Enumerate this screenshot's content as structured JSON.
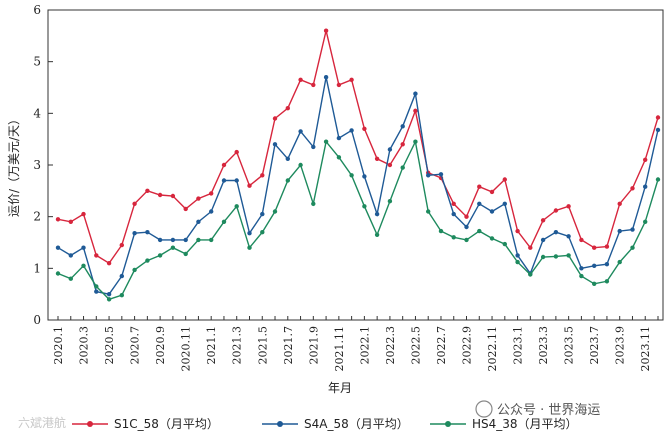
{
  "chart_data": {
    "type": "line",
    "title": "",
    "xlabel": "年月",
    "ylabel": "运价/（万美元/天）",
    "ylim": [
      0,
      6
    ],
    "yticks": [
      0,
      1,
      2,
      3,
      4,
      5,
      6
    ],
    "x": [
      "2020.1",
      "2020.2",
      "2020.3",
      "2020.4",
      "2020.5",
      "2020.6",
      "2020.7",
      "2020.8",
      "2020.9",
      "2020.10",
      "2020.11",
      "2020.12",
      "2021.1",
      "2021.2",
      "2021.3",
      "2021.4",
      "2021.5",
      "2021.6",
      "2021.7",
      "2021.8",
      "2021.9",
      "2021.10",
      "2021.11",
      "2021.12",
      "2022.1",
      "2022.2",
      "2022.3",
      "2022.4",
      "2022.5",
      "2022.6",
      "2022.7",
      "2022.8",
      "2022.9",
      "2022.10",
      "2022.11",
      "2022.12",
      "2023.1",
      "2023.2",
      "2023.3",
      "2023.4",
      "2023.5",
      "2023.6",
      "2023.7",
      "2023.8",
      "2023.9",
      "2023.10",
      "2023.11",
      "2023.12"
    ],
    "xtick_labels": [
      "2020.1",
      "2020.3",
      "2020.5",
      "2020.7",
      "2020.9",
      "2020.11",
      "2021.1",
      "2021.3",
      "2021.5",
      "2021.7",
      "2021.9",
      "2021.11",
      "2022.1",
      "2022.3",
      "2022.5",
      "2022.7",
      "2022.9",
      "2022.11",
      "2023.1",
      "2023.3",
      "2023.5",
      "2023.7",
      "2023.9",
      "2023.11"
    ],
    "series": [
      {
        "name": "S1C_58（月平均）",
        "color": "#d7263d",
        "values": [
          1.95,
          1.9,
          2.05,
          1.25,
          1.1,
          1.45,
          2.25,
          2.5,
          2.42,
          2.4,
          2.15,
          2.35,
          2.45,
          3.0,
          3.25,
          2.6,
          2.8,
          3.9,
          4.1,
          4.65,
          4.55,
          5.6,
          4.55,
          4.65,
          3.7,
          3.12,
          3.0,
          3.4,
          4.05,
          2.85,
          2.75,
          2.25,
          2.0,
          2.58,
          2.48,
          2.72,
          1.72,
          1.4,
          1.93,
          2.12,
          2.2,
          1.55,
          1.4,
          1.42,
          2.25,
          2.55,
          3.1,
          3.92
        ]
      },
      {
        "name": "S4A_58（月平均）",
        "color": "#1f5a96",
        "values": [
          1.4,
          1.25,
          1.4,
          0.55,
          0.5,
          0.85,
          1.68,
          1.7,
          1.55,
          1.55,
          1.55,
          1.9,
          2.1,
          2.7,
          2.7,
          1.68,
          2.05,
          3.4,
          3.12,
          3.65,
          3.35,
          4.7,
          3.52,
          3.67,
          2.78,
          2.05,
          3.3,
          3.75,
          4.38,
          2.8,
          2.82,
          2.05,
          1.8,
          2.25,
          2.1,
          2.25,
          1.25,
          0.9,
          1.55,
          1.7,
          1.62,
          1.0,
          1.05,
          1.08,
          1.72,
          1.75,
          2.58,
          3.68
        ]
      },
      {
        "name": "HS4_38（月平均）",
        "color": "#1e8a5e",
        "values": [
          0.9,
          0.8,
          1.05,
          0.65,
          0.4,
          0.48,
          0.97,
          1.15,
          1.25,
          1.4,
          1.28,
          1.55,
          1.55,
          1.9,
          2.2,
          1.4,
          1.7,
          2.1,
          2.7,
          3.0,
          2.25,
          3.45,
          3.15,
          2.8,
          2.2,
          1.65,
          2.3,
          2.95,
          3.45,
          2.1,
          1.72,
          1.6,
          1.55,
          1.72,
          1.58,
          1.47,
          1.12,
          0.88,
          1.22,
          1.23,
          1.25,
          0.85,
          0.7,
          0.75,
          1.12,
          1.4,
          1.9,
          2.72
        ]
      }
    ],
    "legend_position": "bottom"
  },
  "watermark": {
    "left_text": "六斌港航",
    "right_text": "公众号 · 世界海运"
  }
}
